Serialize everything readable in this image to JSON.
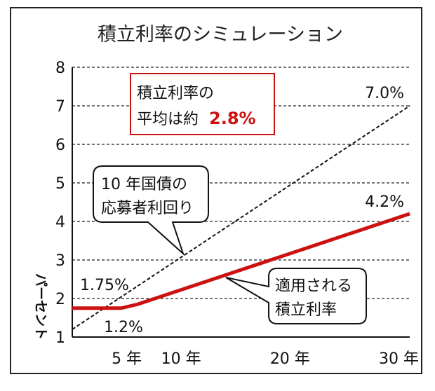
{
  "chart_data": {
    "type": "line",
    "title": "積立利率のシミュレーション",
    "ylabel": "パーセント",
    "xlabel": "",
    "xlim": [
      0,
      31
    ],
    "ylim": [
      1,
      8
    ],
    "yticks": [
      "1",
      "2",
      "3",
      "4",
      "5",
      "6",
      "7",
      "8"
    ],
    "xticks": [
      {
        "x": 5,
        "label": "5 年"
      },
      {
        "x": 10,
        "label": "10 年"
      },
      {
        "x": 20,
        "label": "20 年"
      },
      {
        "x": 30,
        "label": "30 年"
      }
    ],
    "grid": "horizontal-dashed",
    "series": [
      {
        "key": "bond",
        "color": "#111111",
        "style": "dashed",
        "points": [
          [
            0,
            1.2
          ],
          [
            31,
            7.0
          ]
        ]
      },
      {
        "key": "applied",
        "color": "#cc1111",
        "style": "solid",
        "points": [
          [
            0,
            1.75
          ],
          [
            4.5,
            1.75
          ],
          [
            6,
            1.85
          ],
          [
            31,
            4.2
          ]
        ]
      }
    ],
    "point_labels": {
      "bond_end": "7.0%",
      "applied_end": "4.2%",
      "applied_start": "1.75%",
      "bond_start": "1.2%"
    },
    "annotations": {
      "average_box": {
        "line1": "積立利率の",
        "line2_prefix": "平均は約",
        "line2_value": "2.8%",
        "value_color": "#cc1111",
        "border_color": "#cc1111"
      },
      "bond_callout": {
        "line1": "10 年国債の",
        "line2": "応募者利回り"
      },
      "applied_callout": {
        "line1": "適用される",
        "line2": "積立利率"
      }
    }
  }
}
